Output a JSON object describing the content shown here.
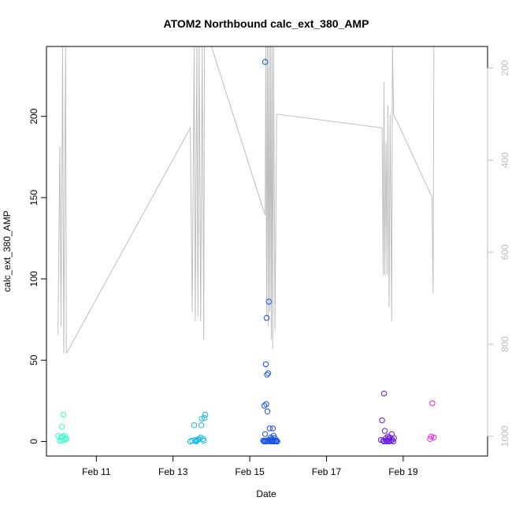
{
  "chart_data": {
    "type": "scatter",
    "title": "ATOM2 Northbound calc_ext_380_AMP",
    "xlabel": "Date",
    "ylabel": "calc_ext_380_AMP",
    "x_ticks": [
      "Feb 11",
      "Feb 13",
      "Feb 15",
      "Feb 17",
      "Feb 19"
    ],
    "x_tick_values": [
      11,
      13,
      15,
      17,
      19
    ],
    "xlim": [
      9.7,
      21.2
    ],
    "y_ticks": [
      "0",
      "50",
      "100",
      "150",
      "200"
    ],
    "y_tick_values": [
      0,
      50,
      100,
      150,
      200
    ],
    "ylim": [
      -9,
      243
    ],
    "y2_ticks": [
      "200",
      "400",
      "600",
      "800",
      "1000"
    ],
    "y2_tick_values": [
      200,
      400,
      600,
      800,
      1000
    ],
    "y2lim": [
      1043,
      153
    ],
    "y2_reversed": true,
    "grid": false,
    "colors": {
      "axis": "#000000",
      "line": "#bebebe",
      "right_axis": "#bdbdbd"
    },
    "series": [
      {
        "color": "#33ffcc",
        "points": [
          [
            10.0,
            3.5
          ],
          [
            10.05,
            0.5
          ],
          [
            10.08,
            2.5
          ],
          [
            10.1,
            9.0
          ],
          [
            10.12,
            3.0
          ],
          [
            10.14,
            16.5
          ],
          [
            10.16,
            1.0
          ],
          [
            10.18,
            3.5
          ],
          [
            10.2,
            2.0
          ],
          [
            10.22,
            1.5
          ],
          [
            10.09,
            0.5
          ]
        ]
      },
      {
        "color": "#1ab8e6",
        "points": [
          [
            13.45,
            0.0
          ],
          [
            13.5,
            0.5
          ],
          [
            13.55,
            10.0
          ],
          [
            13.58,
            1.0
          ],
          [
            13.62,
            0.5
          ],
          [
            13.68,
            1.5
          ],
          [
            13.72,
            2.5
          ],
          [
            13.74,
            10.0
          ],
          [
            13.75,
            14.0
          ],
          [
            13.78,
            1.5
          ],
          [
            13.8,
            0.5
          ],
          [
            13.82,
            14.5
          ],
          [
            13.84,
            16.5
          ],
          [
            13.6,
            0.0
          ],
          [
            13.65,
            1.0
          ]
        ]
      },
      {
        "color": "#1a52e6",
        "points": [
          [
            15.4,
            233.5
          ],
          [
            15.42,
            47.5
          ],
          [
            15.45,
            41.0
          ],
          [
            15.48,
            42.0
          ],
          [
            15.44,
            76.0
          ],
          [
            15.5,
            86.0
          ],
          [
            15.38,
            22.0
          ],
          [
            15.43,
            23.0
          ],
          [
            15.46,
            18.5
          ],
          [
            15.52,
            8.0
          ],
          [
            15.6,
            8.0
          ],
          [
            15.4,
            4.5
          ],
          [
            15.55,
            2.5
          ],
          [
            15.62,
            3.5
          ],
          [
            15.35,
            0.5
          ],
          [
            15.37,
            0.0
          ],
          [
            15.39,
            0.5
          ],
          [
            15.41,
            0.0
          ],
          [
            15.44,
            0.5
          ],
          [
            15.47,
            0.0
          ],
          [
            15.5,
            1.0
          ],
          [
            15.53,
            0.0
          ],
          [
            15.56,
            0.5
          ],
          [
            15.58,
            0.0
          ],
          [
            15.6,
            0.5
          ],
          [
            15.63,
            0.0
          ],
          [
            15.66,
            0.5
          ],
          [
            15.68,
            0.0
          ],
          [
            15.7,
            0.5
          ],
          [
            15.72,
            0.0
          ],
          [
            15.58,
            1.5
          ],
          [
            15.65,
            2.0
          ]
        ]
      },
      {
        "color": "#6618e6",
        "points": [
          [
            18.45,
            13.0
          ],
          [
            18.5,
            29.5
          ],
          [
            18.52,
            6.5
          ],
          [
            18.55,
            2.0
          ],
          [
            18.6,
            3.0
          ],
          [
            18.42,
            1.0
          ],
          [
            18.48,
            0.5
          ],
          [
            18.58,
            0.0
          ],
          [
            18.62,
            1.5
          ],
          [
            18.65,
            2.5
          ],
          [
            18.68,
            0.5
          ],
          [
            18.7,
            4.5
          ],
          [
            18.72,
            1.0
          ],
          [
            18.74,
            0.0
          ],
          [
            18.5,
            0.0
          ],
          [
            18.56,
            0.5
          ],
          [
            18.64,
            0.0
          ],
          [
            18.76,
            2.0
          ]
        ]
      },
      {
        "color": "#ee22ee",
        "points": [
          [
            19.7,
            1.5
          ],
          [
            19.73,
            3.0
          ],
          [
            19.76,
            23.5
          ],
          [
            19.8,
            2.5
          ]
        ]
      }
    ],
    "line_series": {
      "color": "#bebebe",
      "axis": "right",
      "segments": [
        [
          [
            10.0,
            780
          ],
          [
            10.05,
            370
          ],
          [
            10.08,
            760
          ],
          [
            10.12,
            120
          ],
          [
            10.15,
            820
          ],
          [
            10.2,
            120
          ],
          [
            10.22,
            820
          ],
          [
            13.45,
            330
          ],
          [
            13.5,
            730
          ],
          [
            13.55,
            140
          ],
          [
            13.58,
            750
          ],
          [
            13.62,
            130
          ],
          [
            13.65,
            740
          ],
          [
            13.68,
            120
          ],
          [
            13.72,
            750
          ],
          [
            13.76,
            120
          ],
          [
            13.8,
            790
          ],
          [
            13.82,
            120
          ],
          [
            14.0,
            120
          ],
          [
            15.4,
            520
          ],
          [
            15.42,
            120
          ],
          [
            15.44,
            740
          ],
          [
            15.46,
            120
          ],
          [
            15.48,
            760
          ],
          [
            15.5,
            120
          ],
          [
            15.52,
            730
          ],
          [
            15.54,
            120
          ],
          [
            15.56,
            790
          ],
          [
            15.58,
            120
          ],
          [
            15.6,
            810
          ],
          [
            15.62,
            120
          ],
          [
            15.66,
            770
          ],
          [
            15.7,
            300
          ],
          [
            18.45,
            330
          ],
          [
            18.48,
            650
          ],
          [
            18.5,
            230
          ],
          [
            18.52,
            650
          ],
          [
            18.55,
            360
          ],
          [
            18.58,
            650
          ],
          [
            18.6,
            280
          ],
          [
            18.63,
            720
          ],
          [
            18.66,
            300
          ],
          [
            18.7,
            750
          ],
          [
            18.72,
            120
          ],
          [
            18.75,
            300
          ],
          [
            19.75,
            480
          ],
          [
            19.78,
            690
          ],
          [
            19.8,
            120
          ]
        ]
      ]
    }
  }
}
